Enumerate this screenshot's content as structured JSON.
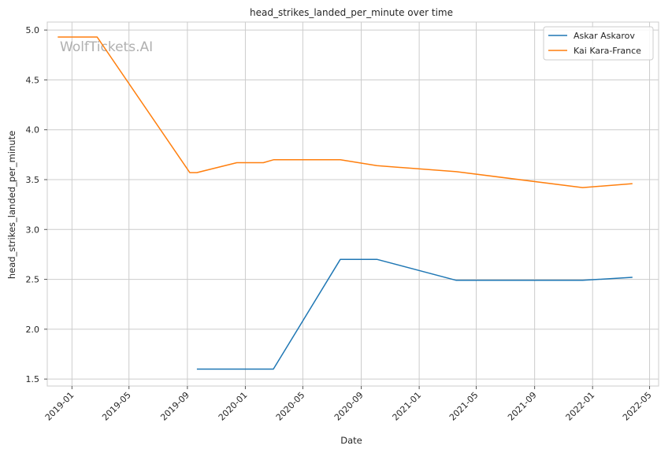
{
  "chart_data": {
    "type": "line",
    "title": "head_strikes_landed_per_minute over time",
    "xlabel": "Date",
    "ylabel": "head_strikes_landed_per_minute",
    "watermark": "WolfTickets.AI",
    "x_ticks": [
      "2019-01",
      "2019-05",
      "2019-09",
      "2020-01",
      "2020-05",
      "2020-09",
      "2021-01",
      "2021-05",
      "2021-09",
      "2022-01",
      "2022-05"
    ],
    "y_ticks": [
      "1.5",
      "2.0",
      "2.5",
      "3.0",
      "3.5",
      "4.0",
      "4.5",
      "5.0"
    ],
    "xlim": [
      "2018-11-10",
      "2022-05-20"
    ],
    "ylim": [
      1.43,
      5.08
    ],
    "grid": true,
    "legend_position": "top-right",
    "series": [
      {
        "name": "Askar Askarov",
        "color": "#1f77b4",
        "points": [
          [
            "2019-09-21",
            1.6
          ],
          [
            "2020-02-29",
            1.6
          ],
          [
            "2020-07-19",
            2.7
          ],
          [
            "2020-10-04",
            2.7
          ],
          [
            "2021-03-20",
            2.49
          ],
          [
            "2021-12-11",
            2.49
          ],
          [
            "2022-03-26",
            2.52
          ]
        ]
      },
      {
        "name": "Kai Kara-France",
        "color": "#ff7f0e",
        "points": [
          [
            "2018-12-02",
            4.93
          ],
          [
            "2019-02-23",
            4.93
          ],
          [
            "2019-09-06",
            3.57
          ],
          [
            "2019-09-21",
            3.57
          ],
          [
            "2019-12-14",
            3.67
          ],
          [
            "2020-02-08",
            3.67
          ],
          [
            "2020-03-01",
            3.7
          ],
          [
            "2020-07-19",
            3.7
          ],
          [
            "2020-10-04",
            3.64
          ],
          [
            "2021-03-20",
            3.58
          ],
          [
            "2021-12-11",
            3.42
          ],
          [
            "2022-03-26",
            3.46
          ]
        ]
      }
    ]
  }
}
